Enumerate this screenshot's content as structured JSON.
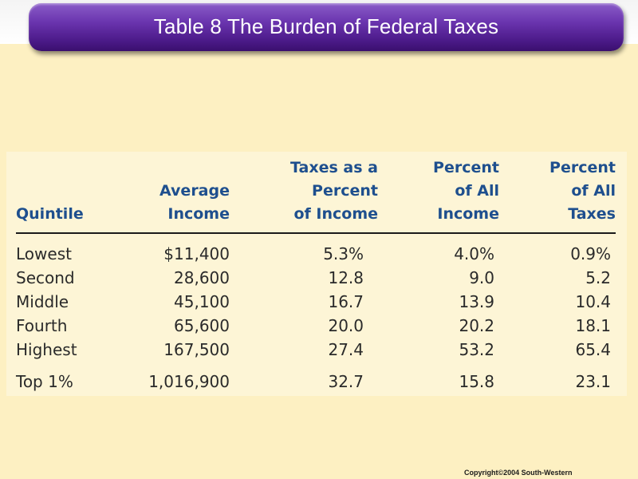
{
  "slide": {
    "title": "Table 8 The Burden of Federal Taxes",
    "copyright": "Copyright©2004 South-Western"
  },
  "table": {
    "headers": [
      [
        "Quintile"
      ],
      [
        "Average",
        "Income"
      ],
      [
        "Taxes as a",
        "Percent",
        "of Income"
      ],
      [
        "Percent",
        "of All",
        "Income"
      ],
      [
        "Percent",
        "of All",
        "Taxes"
      ]
    ],
    "rows": [
      [
        "Lowest",
        "$11,400",
        "5.3%",
        "4.0%",
        "0.9%"
      ],
      [
        "Second",
        "28,600",
        "12.8",
        "9.0",
        "5.2"
      ],
      [
        "Middle",
        "45,100",
        "16.7",
        "13.9",
        "10.4"
      ],
      [
        "Fourth",
        "65,600",
        "20.0",
        "20.2",
        "18.1"
      ],
      [
        "Highest",
        "167,500",
        "27.4",
        "53.2",
        "65.4"
      ],
      [
        "Top 1%",
        "1,016,900",
        "32.7",
        "15.8",
        "23.1"
      ]
    ]
  }
}
